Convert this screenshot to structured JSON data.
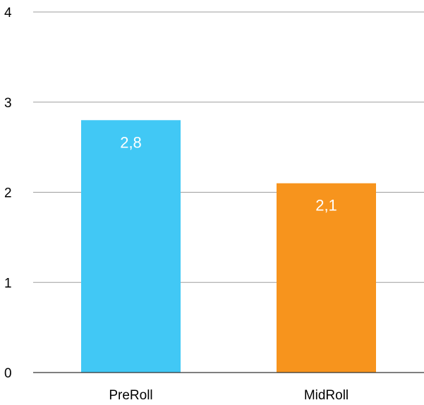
{
  "chart_data": {
    "type": "bar",
    "categories": [
      "PreRoll",
      "MidRoll"
    ],
    "values": [
      2.8,
      2.1
    ],
    "data_labels": [
      "2,8",
      "2,1"
    ],
    "colors": [
      "#41c8f5",
      "#f7941d"
    ],
    "ylim": [
      0,
      4
    ],
    "yticks": [
      0,
      1,
      2,
      3,
      4
    ],
    "ytick_labels": [
      "0",
      "1",
      "2",
      "3",
      "4"
    ],
    "grid": true,
    "legend": "none",
    "gridline_color": "#9e9e9e",
    "baseline_color": "#333333"
  }
}
